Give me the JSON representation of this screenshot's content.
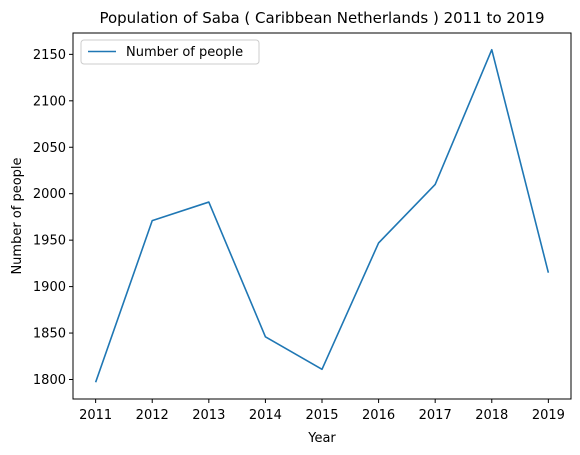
{
  "chart_data": {
    "type": "line",
    "title": "Population of Saba ( Caribbean Netherlands ) 2011 to 2019",
    "xlabel": "Year",
    "ylabel": "Number of people",
    "x": [
      2011,
      2012,
      2013,
      2014,
      2015,
      2016,
      2017,
      2018,
      2019
    ],
    "series": [
      {
        "name": "Number of people",
        "values": [
          1797,
          1971,
          1991,
          1846,
          1811,
          1947,
          2010,
          2155,
          1915
        ],
        "color": "#1f77b4"
      }
    ],
    "xticks": [
      "2011",
      "2012",
      "2013",
      "2014",
      "2015",
      "2016",
      "2017",
      "2018",
      "2019"
    ],
    "yticks": [
      1800,
      1850,
      1900,
      1950,
      2000,
      2050,
      2100,
      2150
    ],
    "ylim": [
      1779,
      2173
    ],
    "grid": false,
    "legend": "upper-left"
  }
}
